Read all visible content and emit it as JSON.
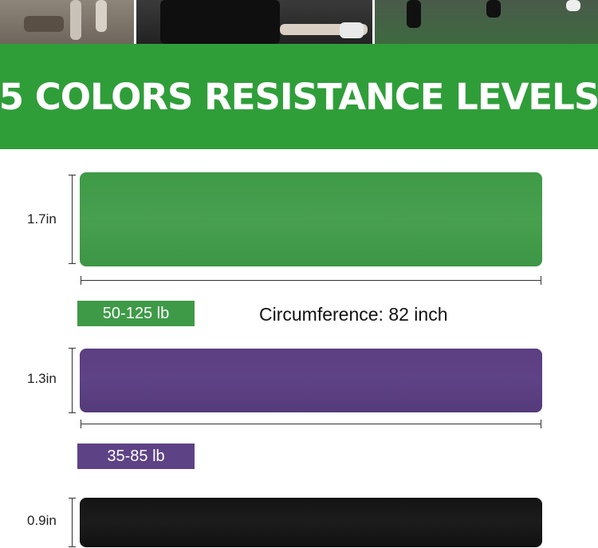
{
  "banner": {
    "title": "5 COLORS RESISTANCE LEVELS"
  },
  "colors": {
    "green": "#3f9a47",
    "purple": "#5e4286",
    "black": "#161616",
    "banner": "#2f9e39"
  },
  "bands": [
    {
      "color": "green",
      "width_label": "1.7in",
      "resistance_label": "50-125 lb"
    },
    {
      "color": "purple",
      "width_label": "1.3in",
      "resistance_label": "35-85 lb"
    },
    {
      "color": "black",
      "width_label": "0.9in"
    }
  ],
  "circumference_label": "Circumference: 82 inch"
}
